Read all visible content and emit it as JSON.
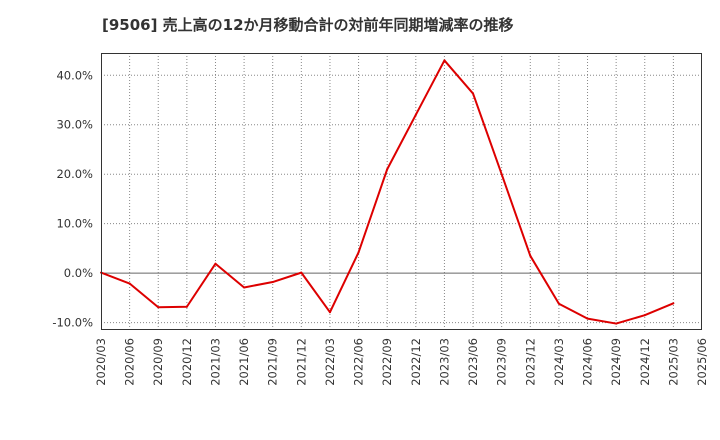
{
  "chart_data": {
    "type": "line",
    "title": "[9506]  売上高の12か月移動合計の対前年同期増減率の推移",
    "xlabel": "",
    "ylabel": "",
    "ylim": [
      -11.5,
      44.5
    ],
    "yticks": [
      -10,
      0,
      10,
      20,
      30,
      40
    ],
    "ytick_labels": [
      "-10.0%",
      "0.0%",
      "10.0%",
      "20.0%",
      "30.0%",
      "40.0%"
    ],
    "categories": [
      "2020/03",
      "2020/06",
      "2020/09",
      "2020/12",
      "2021/03",
      "2021/06",
      "2021/09",
      "2021/12",
      "2022/03",
      "2022/06",
      "2022/09",
      "2022/12",
      "2023/03",
      "2023/06",
      "2023/09",
      "2023/12",
      "2024/03",
      "2024/06",
      "2024/09",
      "2024/12",
      "2025/03",
      "2025/06"
    ],
    "grid": true,
    "series": [
      {
        "name": "対前年同期増減率",
        "color": "#dd0000",
        "values": [
          0.1,
          -2.1,
          -6.9,
          -6.8,
          1.9,
          -2.9,
          -1.8,
          0.1,
          -7.9,
          4.2,
          21.0,
          32.0,
          43.0,
          36.3,
          20.0,
          3.5,
          -6.2,
          -9.2,
          -10.2,
          -8.5,
          -6.1,
          null
        ]
      }
    ]
  }
}
